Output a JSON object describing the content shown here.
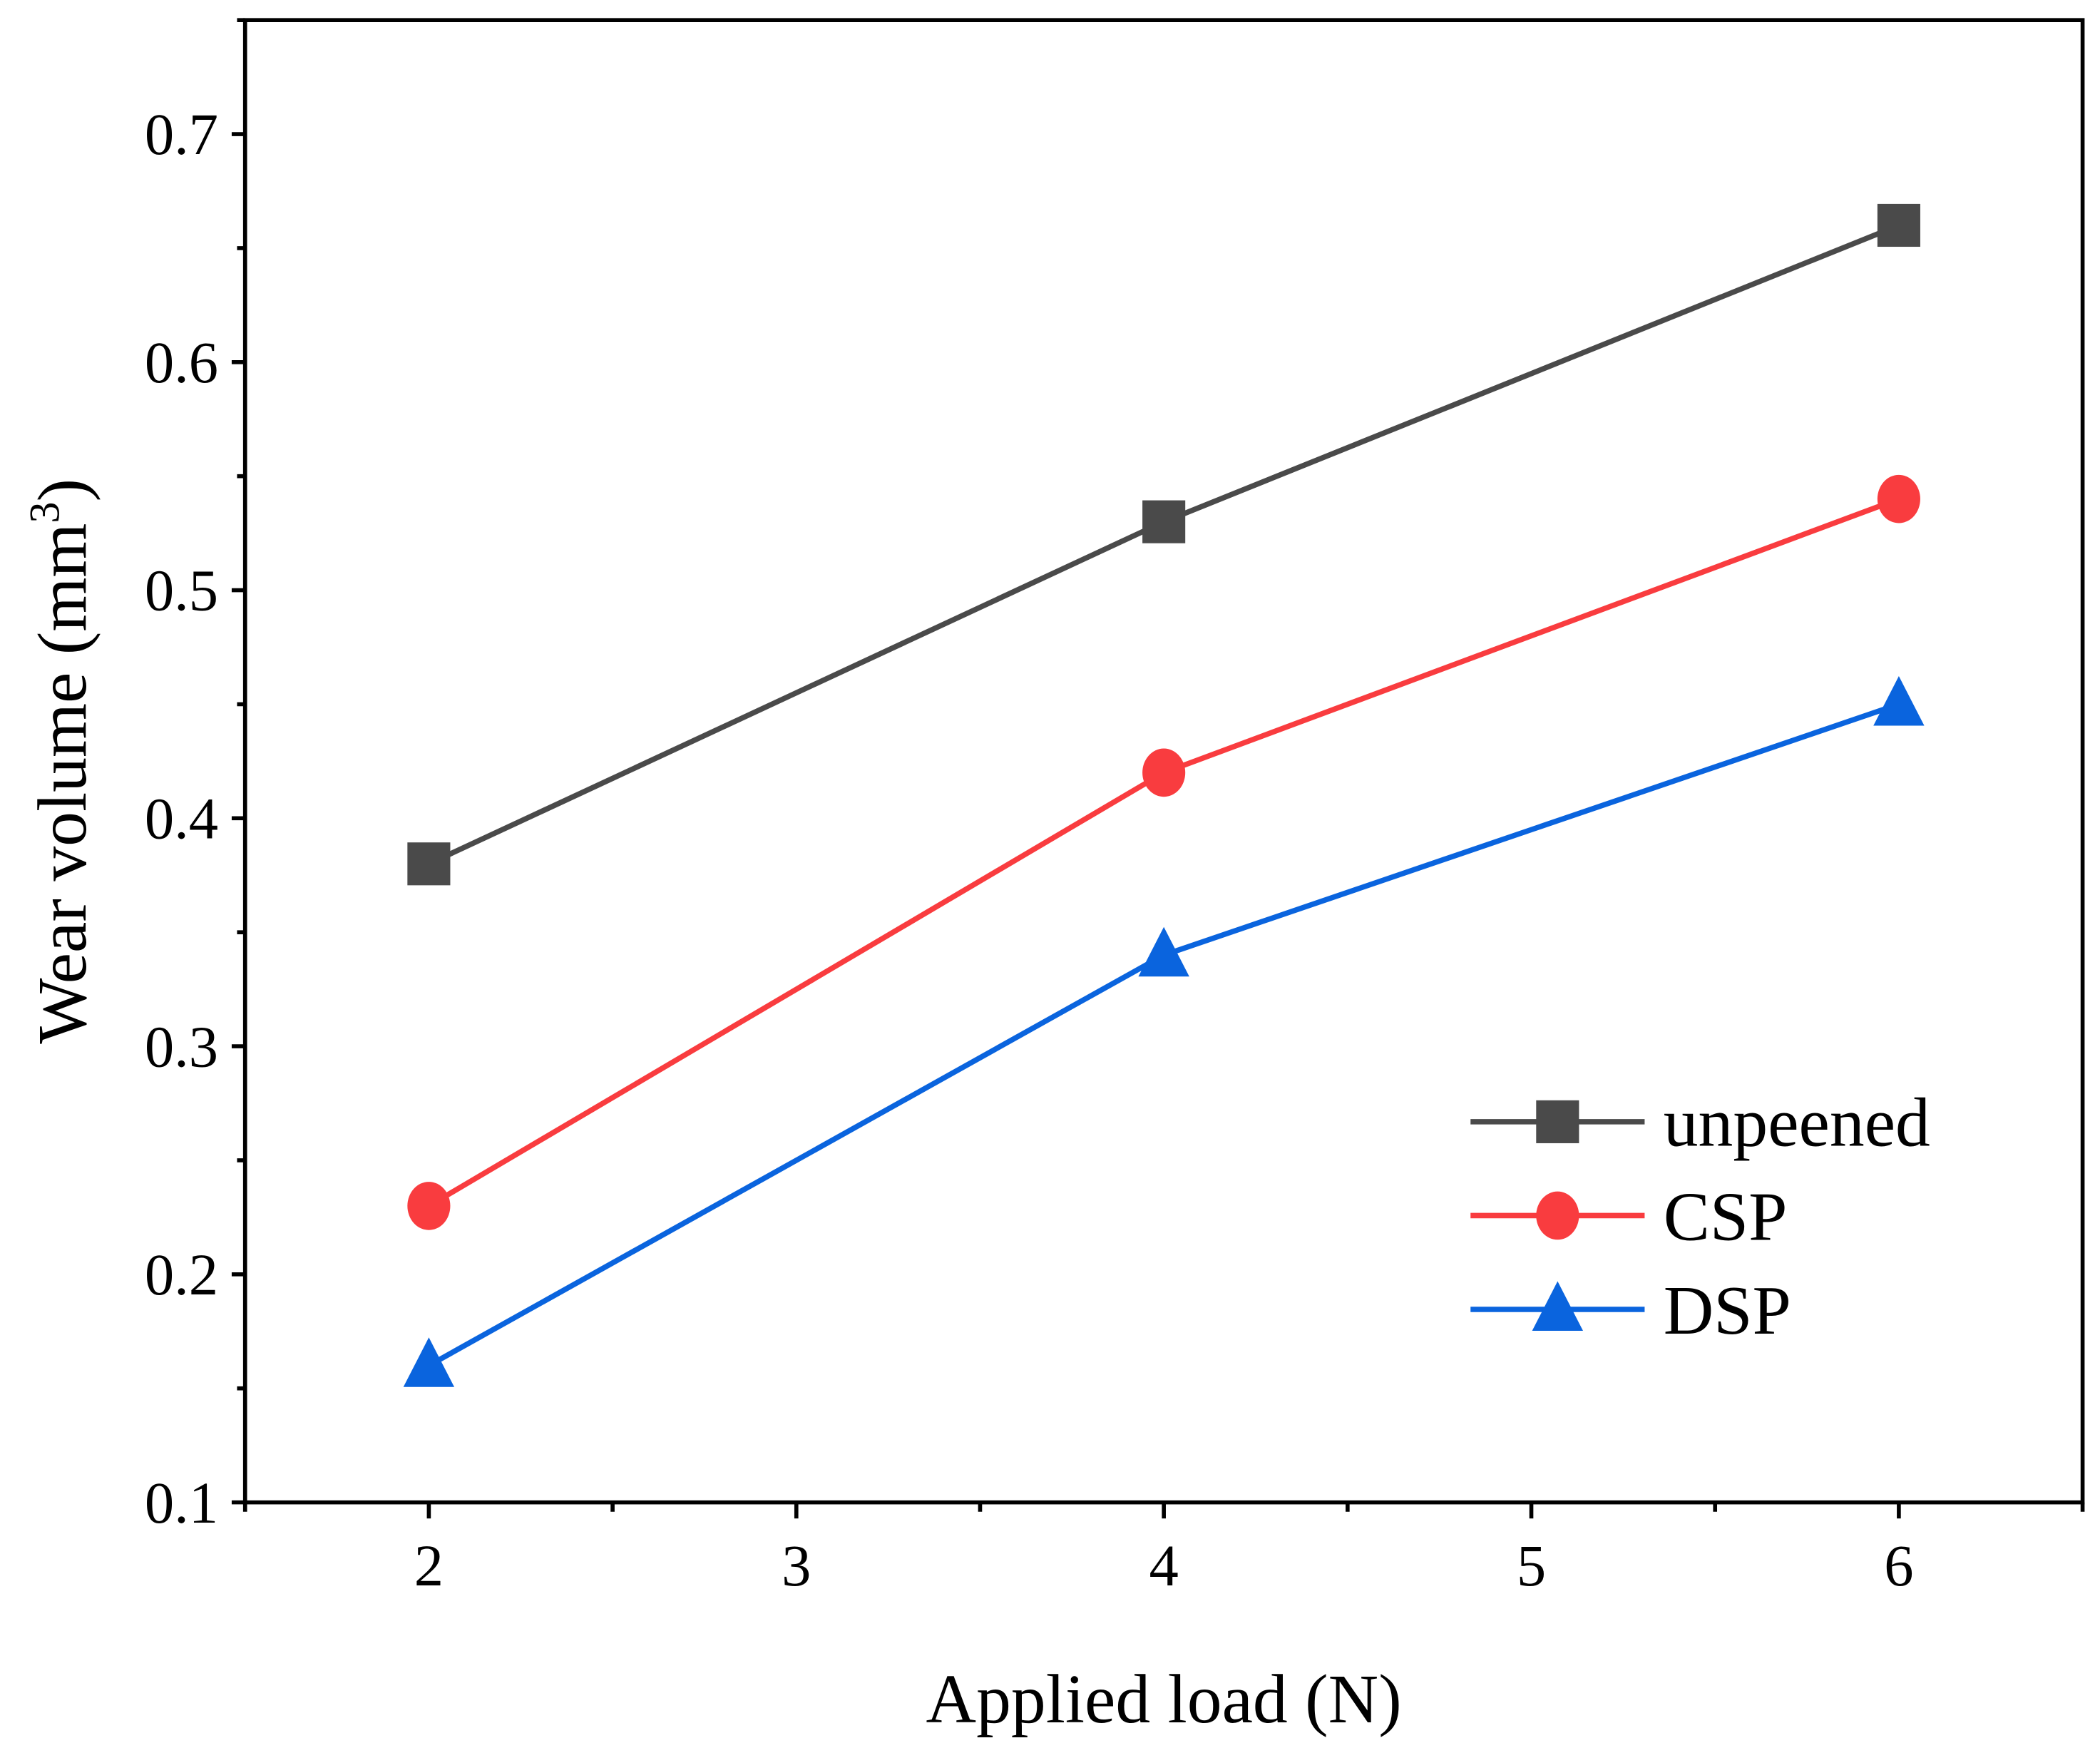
{
  "chart_data": {
    "type": "line",
    "title": "",
    "xlabel": "Applied load (N)",
    "ylabel": "Wear volume (mm",
    "ylabel_sup": "3",
    "ylabel_close": ")",
    "xlim": [
      1.5,
      6.5
    ],
    "ylim": [
      0.1,
      0.75
    ],
    "xticks": [
      2,
      3,
      4,
      5,
      6
    ],
    "xtick_labels": [
      "2",
      "3",
      "4",
      "5",
      "6"
    ],
    "yticks": [
      0.1,
      0.2,
      0.3,
      0.4,
      0.5,
      0.6,
      0.7
    ],
    "ytick_labels": [
      "0.1",
      "0.2",
      "0.3",
      "0.4",
      "0.5",
      "0.6",
      "0.7"
    ],
    "grid": false,
    "legend_position": "bottom-right",
    "x": [
      2,
      4,
      6
    ],
    "series": [
      {
        "name": "unpeened",
        "values": [
          0.38,
          0.53,
          0.66
        ],
        "color": "#4a4a4a",
        "marker": "square"
      },
      {
        "name": "CSP",
        "values": [
          0.23,
          0.42,
          0.54
        ],
        "color": "#f93c3f",
        "marker": "circle"
      },
      {
        "name": "DSP",
        "values": [
          0.16,
          0.34,
          0.45
        ],
        "color": "#0a64de",
        "marker": "triangle"
      }
    ]
  }
}
